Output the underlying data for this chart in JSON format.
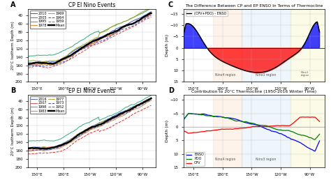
{
  "title_A": "CP El Nino Events",
  "title_B": "EP El Nino Events",
  "title_C": "The Difference Between CP and EP ENSO In Terms of Thermocline",
  "title_D": "Contribution to 20°C Thermocline (1950-2016 Winter Time)",
  "ylabel_AB": "20°C Isotherm Depth (m)",
  "ylabel_CD": "Depth (m)",
  "lon_ticks": [
    150,
    180,
    210,
    240,
    270
  ],
  "lon_labels": [
    "150°E",
    "180°E",
    "150°W",
    "120°W",
    "90°W"
  ],
  "ylim_AB": [
    200,
    25
  ],
  "ylim_C": [
    15,
    -17
  ],
  "ylim_D": [
    15,
    -12
  ],
  "background_color": "#ffffff",
  "cp_years": [
    "2010",
    "2005",
    "1995",
    "1978",
    "1969",
    "1964",
    "1959",
    "Mean"
  ],
  "cp_colors": [
    "#3355bb",
    "#dd4444",
    "#33aa77",
    "#dd8833",
    "#aaaa22",
    "#3355bb",
    "#dd4444",
    "#000000"
  ],
  "cp_styles": [
    "-",
    "-",
    "-",
    "-",
    "-",
    "--",
    "--",
    "-"
  ],
  "cp_widths": [
    1,
    1,
    1,
    1,
    1,
    1,
    1,
    2.5
  ],
  "ep_years": [
    "2016",
    "2007",
    "1998",
    "1983",
    "1977",
    "1973",
    "1952",
    "Mean"
  ],
  "ep_colors": [
    "#5566cc",
    "#dd5555",
    "#33aa88",
    "#cc8844",
    "#aaaa33",
    "#4455aa",
    "#dd3333",
    "#000000"
  ],
  "ep_styles": [
    "-",
    "-",
    "-",
    "-",
    "-",
    "--",
    "--",
    "-"
  ],
  "ep_widths": [
    1,
    1,
    1,
    1,
    1,
    1,
    1,
    2.5
  ]
}
